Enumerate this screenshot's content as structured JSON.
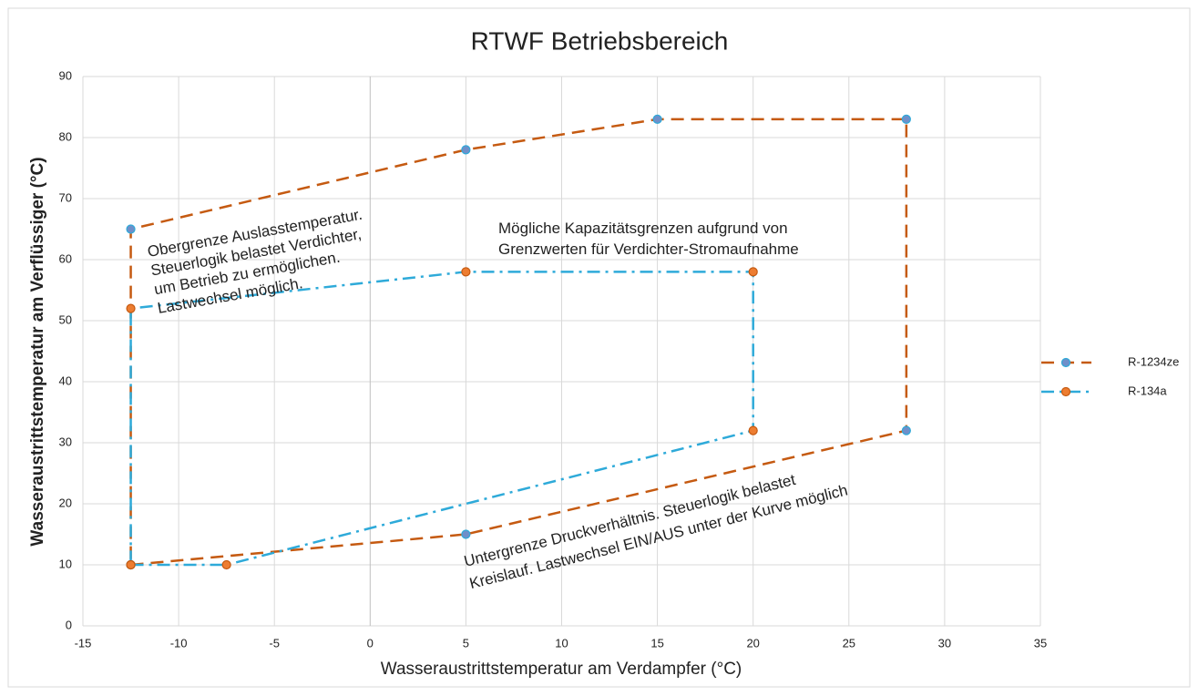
{
  "chart_data": {
    "type": "scatter",
    "title": "RTWF Betriebsbereich",
    "x_label": "Wasseraustrittstemperatur am Verdampfer (°C)",
    "y_label": "Wasseraustrittstemperatur am Verflüssiger (°C)",
    "xlim": [
      -15,
      35
    ],
    "xticks": [
      -15,
      -10,
      -5,
      0,
      5,
      10,
      15,
      20,
      25,
      30,
      35
    ],
    "ylim": [
      0,
      90
    ],
    "yticks": [
      0,
      10,
      20,
      30,
      40,
      50,
      60,
      70,
      80,
      90
    ],
    "grid": true,
    "legend": "right",
    "series": [
      {
        "name": "R-1234ze",
        "color": "#c55a11",
        "marker_color": "#6f8fc9",
        "line_style": "dashed",
        "x": [
          -12.5,
          5,
          28,
          28,
          15,
          5,
          -12.5,
          -12.5
        ],
        "values": [
          10,
          15,
          32,
          83,
          83,
          78,
          65,
          10
        ]
      },
      {
        "name": "R-134a",
        "color": "#2eaad9",
        "marker_color": "#ed7d31",
        "line_style": "dash-dot",
        "x": [
          -12.5,
          -7.5,
          20,
          20,
          5,
          -12.5,
          -12.5
        ],
        "values": [
          10,
          10,
          32,
          58,
          58,
          52,
          10
        ]
      }
    ],
    "annotations": [
      {
        "lines": [
          "Obergrenze Auslasstemperatur.",
          "Steuerlogik belastet Verdichter,",
          "um Betrieb zu ermöglichen.",
          "Lastwechsel möglich."
        ]
      },
      {
        "lines": [
          "Mögliche Kapazitätsgrenzen aufgrund von",
          "Grenzwerten für Verdichter-Stromaufnahme"
        ]
      },
      {
        "lines": [
          "Untergrenze Druckverhältnis. Steuerlogik belastet",
          "Kreislauf. Lastwechsel EIN/AUS unter der Kurve möglich"
        ]
      }
    ]
  }
}
